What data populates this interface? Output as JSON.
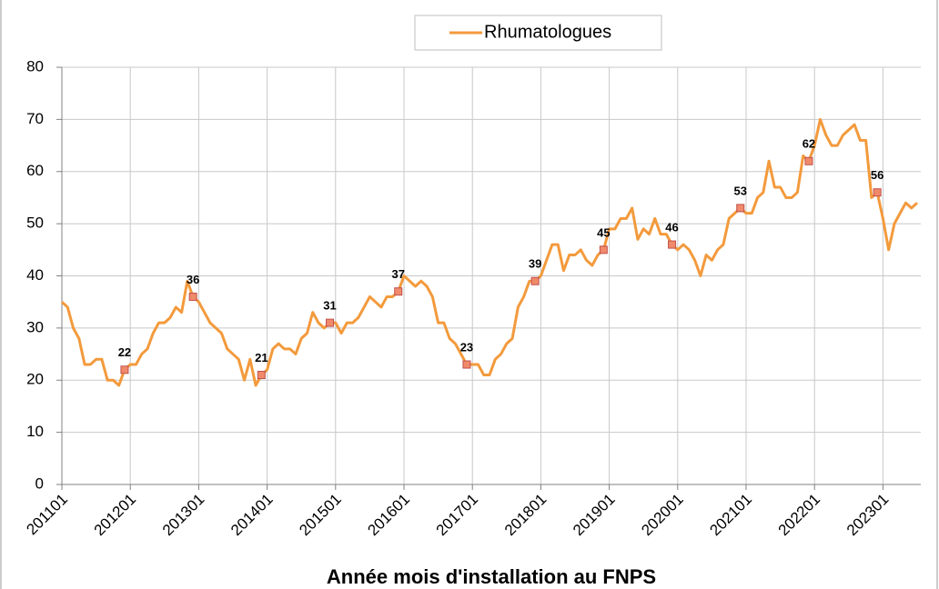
{
  "chart_data": {
    "type": "line",
    "x_label": "Année mois d'installation au FNPS",
    "categories": [
      "201101",
      null,
      null,
      null,
      null,
      null,
      null,
      null,
      null,
      null,
      null,
      null,
      "201201",
      null,
      null,
      null,
      null,
      null,
      null,
      null,
      null,
      null,
      null,
      null,
      "201301",
      null,
      null,
      null,
      null,
      null,
      null,
      null,
      null,
      null,
      null,
      null,
      "201401",
      null,
      null,
      null,
      null,
      null,
      null,
      null,
      null,
      null,
      null,
      null,
      "201501",
      null,
      null,
      null,
      null,
      null,
      null,
      null,
      null,
      null,
      null,
      null,
      "201601",
      null,
      null,
      null,
      null,
      null,
      null,
      null,
      null,
      null,
      null,
      null,
      "201701",
      null,
      null,
      null,
      null,
      null,
      null,
      null,
      null,
      null,
      null,
      null,
      "201801",
      null,
      null,
      null,
      null,
      null,
      null,
      null,
      null,
      null,
      null,
      null,
      "201901",
      null,
      null,
      null,
      null,
      null,
      null,
      null,
      null,
      null,
      null,
      null,
      "202001",
      null,
      null,
      null,
      null,
      null,
      null,
      null,
      null,
      null,
      null,
      null,
      "202101",
      null,
      null,
      null,
      null,
      null,
      null,
      null,
      null,
      null,
      null,
      null,
      "202201",
      null,
      null,
      null,
      null,
      null,
      null,
      null,
      null,
      null,
      null,
      null,
      "202301",
      null,
      null,
      null,
      null,
      null,
      null
    ],
    "series": [
      {
        "name": "Rhumatologues",
        "color": "#f39a3c",
        "marker_color": "#f08a6a",
        "values": [
          35,
          34,
          30,
          28,
          23,
          23,
          24,
          24,
          20,
          20,
          19,
          22,
          23,
          23,
          25,
          26,
          29,
          31,
          31,
          32,
          34,
          33,
          39,
          36,
          35,
          33,
          31,
          30,
          29,
          26,
          25,
          24,
          20,
          24,
          19,
          21,
          22,
          26,
          27,
          26,
          26,
          25,
          28,
          29,
          33,
          31,
          30,
          31,
          31,
          29,
          31,
          31,
          32,
          34,
          36,
          35,
          34,
          36,
          36,
          37,
          40,
          39,
          38,
          39,
          38,
          36,
          31,
          31,
          28,
          27,
          25,
          23,
          23,
          23,
          21,
          21,
          24,
          25,
          27,
          28,
          34,
          36,
          39,
          39,
          40,
          43,
          46,
          46,
          41,
          44,
          44,
          45,
          43,
          42,
          44,
          45,
          49,
          49,
          51,
          51,
          53,
          47,
          49,
          48,
          51,
          48,
          48,
          46,
          45,
          46,
          45,
          43,
          40,
          44,
          43,
          45,
          46,
          51,
          52,
          53,
          52,
          52,
          55,
          56,
          62,
          57,
          57,
          55,
          55,
          56,
          63,
          62,
          65,
          70,
          67,
          65,
          65,
          67,
          68,
          69,
          66,
          66,
          55,
          56,
          51,
          45,
          50,
          52,
          54,
          53,
          54
        ],
        "value_labels": [
          null,
          null,
          null,
          null,
          null,
          null,
          null,
          null,
          null,
          null,
          null,
          "22",
          null,
          null,
          null,
          null,
          null,
          null,
          null,
          null,
          null,
          null,
          null,
          "36",
          null,
          null,
          null,
          null,
          null,
          null,
          null,
          null,
          null,
          null,
          null,
          "21",
          null,
          null,
          null,
          null,
          null,
          null,
          null,
          null,
          null,
          null,
          null,
          "31",
          null,
          null,
          null,
          null,
          null,
          null,
          null,
          null,
          null,
          null,
          null,
          "37",
          null,
          null,
          null,
          null,
          null,
          null,
          null,
          null,
          null,
          null,
          null,
          "23",
          null,
          null,
          null,
          null,
          null,
          null,
          null,
          null,
          null,
          null,
          null,
          "39",
          null,
          null,
          null,
          null,
          null,
          null,
          null,
          null,
          null,
          null,
          null,
          "45",
          null,
          null,
          null,
          null,
          null,
          null,
          null,
          null,
          null,
          null,
          null,
          "46",
          null,
          null,
          null,
          null,
          null,
          null,
          null,
          null,
          null,
          null,
          null,
          "53",
          null,
          null,
          null,
          null,
          null,
          null,
          null,
          null,
          null,
          null,
          null,
          "62",
          null,
          null,
          null,
          null,
          null,
          null,
          null,
          null,
          null,
          null,
          null,
          "56",
          null,
          null,
          null,
          null,
          null,
          null,
          null
        ]
      }
    ],
    "ylim": [
      0,
      80
    ],
    "yticks": [
      0,
      10,
      20,
      30,
      40,
      50,
      60,
      70,
      80
    ],
    "grid": true,
    "legend": "top"
  }
}
